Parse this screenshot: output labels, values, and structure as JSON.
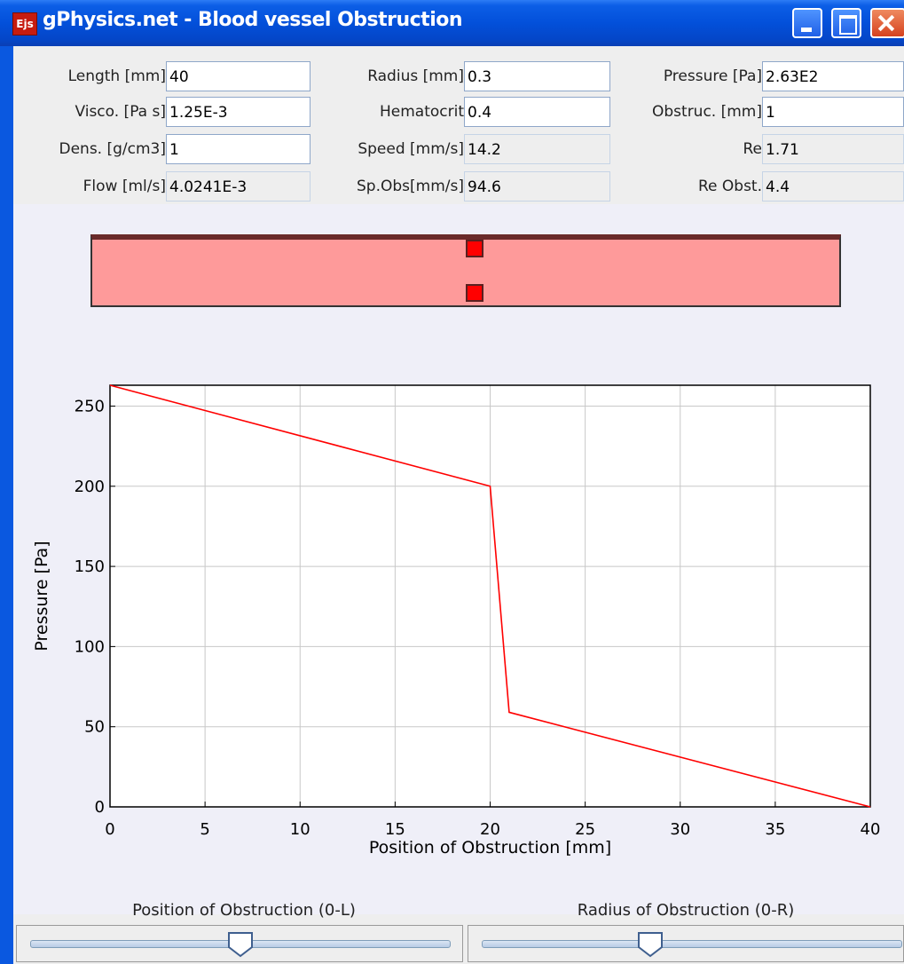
{
  "window": {
    "app_icon": "Ejs",
    "title": "gPhysics.net - Blood vessel Obstruction",
    "icon_name": "ejs-app-icon"
  },
  "fields": {
    "length": {
      "label": "Length [mm]",
      "value": "40"
    },
    "radius": {
      "label": "Radius [mm]",
      "value": "0.3"
    },
    "pressure": {
      "label": "Pressure [Pa]",
      "value": "2.63E2"
    },
    "viscosity": {
      "label": "Visco. [Pa s]",
      "value": "1.25E-3"
    },
    "hematocrit": {
      "label": "Hematocrit",
      "value": "0.4"
    },
    "obstruction": {
      "label": "Obstruc. [mm]",
      "value": "1"
    },
    "density": {
      "label": "Dens. [g/cm3]",
      "value": "1"
    },
    "speed": {
      "label": "Speed [mm/s]",
      "value": "14.2"
    },
    "re": {
      "label": "Re",
      "value": "1.71"
    },
    "flow": {
      "label": "Flow [ml/s]",
      "value": "4.0241E-3"
    },
    "speed_obs": {
      "label": "Sp.Obs[mm/s]",
      "value": "94.6"
    },
    "re_obs": {
      "label": "Re Obst.",
      "value": "4.4"
    }
  },
  "vessel": {
    "fill_color": "#fe9a9a",
    "obstruction_color": "#ff0000",
    "obstruction_position_mm": 20,
    "length_mm": 40
  },
  "chart_data": {
    "type": "line",
    "title": "",
    "xlabel": "Position of Obstruction [mm]",
    "ylabel": "Pressure [Pa]",
    "xlim": [
      0,
      40
    ],
    "ylim": [
      0,
      263
    ],
    "x_ticks": [
      0,
      5,
      10,
      15,
      20,
      25,
      30,
      35,
      40
    ],
    "y_ticks": [
      0,
      50,
      100,
      150,
      200,
      250
    ],
    "grid": true,
    "legend": "none",
    "series": [
      {
        "color": "#ff0000",
        "x": [
          0,
          20,
          21,
          40
        ],
        "y": [
          263,
          200,
          59,
          0
        ]
      }
    ]
  },
  "sliders": [
    {
      "label": "Position of Obstruction (0-L)",
      "value_fraction": 0.5
    },
    {
      "label": "Radius of Obstruction (0-R)",
      "value_fraction": 0.4
    }
  ]
}
